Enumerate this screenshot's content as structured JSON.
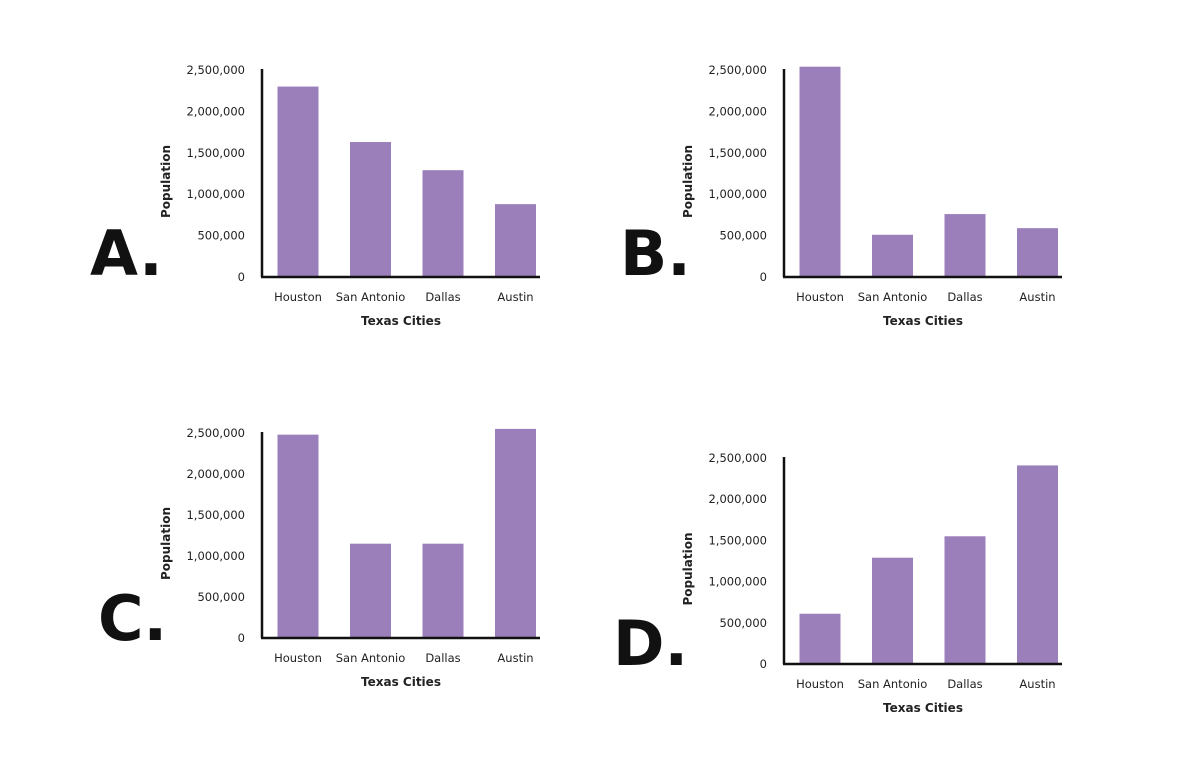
{
  "colors": {
    "bar": "#9b7fbb",
    "axis": "#111111",
    "text": "#222222"
  },
  "chart_data": [
    {
      "type": "bar",
      "panel_label": "A.",
      "categories": [
        "Houston",
        "San Antonio",
        "Dallas",
        "Austin"
      ],
      "values": [
        2300000,
        1630000,
        1290000,
        880000
      ],
      "xlabel": "Texas Cities",
      "ylabel": "Population",
      "ylim": [
        0,
        2500000
      ],
      "yticks": [
        0,
        500000,
        1000000,
        1500000,
        2000000,
        2500000
      ],
      "ytick_labels": [
        "0",
        "500,000",
        "1,000,000",
        "1,500,000",
        "2,000,000",
        "2,500,000"
      ],
      "grid": false,
      "legend": "none"
    },
    {
      "type": "bar",
      "panel_label": "B.",
      "categories": [
        "Houston",
        "San Antonio",
        "Dallas",
        "Austin"
      ],
      "values": [
        2540000,
        510000,
        760000,
        590000
      ],
      "xlabel": "Texas Cities",
      "ylabel": "Population",
      "ylim": [
        0,
        2500000
      ],
      "yticks": [
        0,
        500000,
        1000000,
        1500000,
        2000000,
        2500000
      ],
      "ytick_labels": [
        "0",
        "500,000",
        "1,000,000",
        "1,500,000",
        "2,000,000",
        "2,500,000"
      ],
      "grid": false,
      "legend": "none"
    },
    {
      "type": "bar",
      "panel_label": "C.",
      "categories": [
        "Houston",
        "San Antonio",
        "Dallas",
        "Austin"
      ],
      "values": [
        2480000,
        1150000,
        1150000,
        2550000
      ],
      "xlabel": "Texas Cities",
      "ylabel": "Population",
      "ylim": [
        0,
        2500000
      ],
      "yticks": [
        0,
        500000,
        1000000,
        1500000,
        2000000,
        2500000
      ],
      "ytick_labels": [
        "0",
        "500,000",
        "1,000,000",
        "1,500,000",
        "2,000,000",
        "2,500,000"
      ],
      "grid": false,
      "legend": "none"
    },
    {
      "type": "bar",
      "panel_label": "D.",
      "categories": [
        "Houston",
        "San Antonio",
        "Dallas",
        "Austin"
      ],
      "values": [
        610000,
        1290000,
        1550000,
        2410000
      ],
      "xlabel": "Texas Cities",
      "ylabel": "Population",
      "ylim": [
        0,
        2500000
      ],
      "yticks": [
        0,
        500000,
        1000000,
        1500000,
        2000000,
        2500000
      ],
      "ytick_labels": [
        "0",
        "500,000",
        "1,000,000",
        "1,500,000",
        "2,000,000",
        "2,500,000"
      ],
      "grid": false,
      "legend": "none"
    }
  ]
}
